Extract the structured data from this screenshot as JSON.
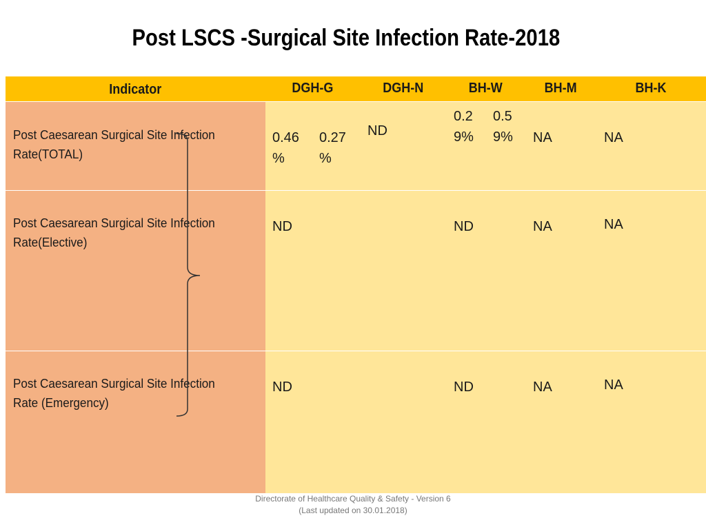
{
  "title": "Post LSCS -Surgical Site Infection Rate-2018",
  "colors": {
    "header": "#ffc000",
    "indicator": "#f4b183",
    "value": "#ffe699"
  },
  "table": {
    "headers": {
      "indicator": "Indicator",
      "dgh_g": "DGH-G",
      "dgh_n": "DGH-N",
      "bh_w": "BH-W",
      "bh_m": "BH-M",
      "bh_k": "BH-K"
    },
    "rows": [
      {
        "indicator": [
          "Post Caesarean Surgical Site Infection",
          "Rate(TOTAL)"
        ],
        "dgh_g_1": [
          "0.46",
          "%"
        ],
        "dgh_g_2": [
          "0.27",
          "%"
        ],
        "dgh_n": "ND",
        "bh_w_1": [
          "0.2",
          "9%"
        ],
        "bh_w_2": [
          "0.5",
          "9%"
        ],
        "bh_m": "NA",
        "bh_k": "NA"
      },
      {
        "indicator": [
          "Post Caesarean Surgical Site Infection",
          "Rate(Elective)"
        ],
        "dgh_g": "ND",
        "bh_w": "ND",
        "bh_m": "NA",
        "bh_k": "NA"
      },
      {
        "indicator": [
          "Post Caesarean Surgical Site Infection",
          "Rate (Emergency)"
        ],
        "dgh_g": "ND",
        "bh_w": "ND",
        "bh_m": "NA",
        "bh_k": "NA"
      }
    ]
  },
  "footer": {
    "line1": "Directorate of Healthcare Quality & Safety - Version 6",
    "line2": "(Last updated on 30.01.2018)"
  }
}
